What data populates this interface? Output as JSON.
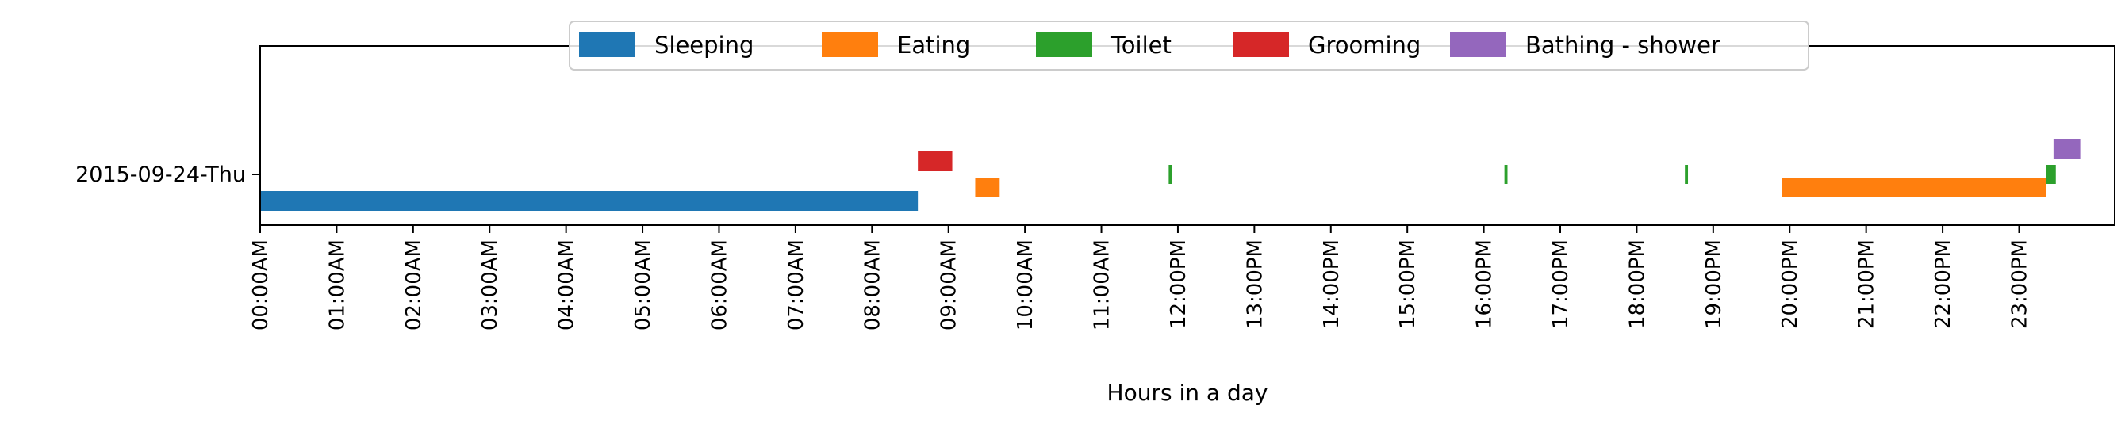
{
  "chart_data": {
    "type": "timeline",
    "title": "",
    "xlabel": "Hours in a day",
    "ylabel": "",
    "xlim": [
      0,
      24.25
    ],
    "grid": false,
    "legend_position": "top-center",
    "rows": [
      {
        "label": "2015-09-24-Thu"
      }
    ],
    "x_ticks": [
      {
        "value": 0,
        "label": "00:00AM"
      },
      {
        "value": 1,
        "label": "01:00AM"
      },
      {
        "value": 2,
        "label": "02:00AM"
      },
      {
        "value": 3,
        "label": "03:00AM"
      },
      {
        "value": 4,
        "label": "04:00AM"
      },
      {
        "value": 5,
        "label": "05:00AM"
      },
      {
        "value": 6,
        "label": "06:00AM"
      },
      {
        "value": 7,
        "label": "07:00AM"
      },
      {
        "value": 8,
        "label": "08:00AM"
      },
      {
        "value": 9,
        "label": "09:00AM"
      },
      {
        "value": 10,
        "label": "10:00AM"
      },
      {
        "value": 11,
        "label": "11:00AM"
      },
      {
        "value": 12,
        "label": "12:00PM"
      },
      {
        "value": 13,
        "label": "13:00PM"
      },
      {
        "value": 14,
        "label": "14:00PM"
      },
      {
        "value": 15,
        "label": "15:00PM"
      },
      {
        "value": 16,
        "label": "16:00PM"
      },
      {
        "value": 17,
        "label": "17:00PM"
      },
      {
        "value": 18,
        "label": "18:00PM"
      },
      {
        "value": 19,
        "label": "19:00PM"
      },
      {
        "value": 20,
        "label": "20:00PM"
      },
      {
        "value": 21,
        "label": "21:00PM"
      },
      {
        "value": 22,
        "label": "22:00PM"
      },
      {
        "value": 23,
        "label": "23:00PM"
      }
    ],
    "series": [
      {
        "name": "Sleeping",
        "color": "#1f77b4",
        "lane": 0,
        "intervals": [
          [
            0.0,
            8.6
          ]
        ]
      },
      {
        "name": "Eating",
        "color": "#ff7f0e",
        "lane": 1,
        "intervals": [
          [
            9.35,
            9.67
          ],
          [
            19.9,
            23.35
          ]
        ]
      },
      {
        "name": "Toilet",
        "color": "#2ca02c",
        "lane": 2,
        "intervals": [
          [
            11.88,
            11.92
          ],
          [
            16.27,
            16.31
          ],
          [
            18.63,
            18.67
          ],
          [
            23.35,
            23.48
          ]
        ]
      },
      {
        "name": "Grooming",
        "color": "#d62728",
        "lane": 3,
        "intervals": [
          [
            8.6,
            9.05
          ]
        ]
      },
      {
        "name": "Bathing - shower",
        "color": "#9467bd",
        "lane": 4,
        "intervals": [
          [
            23.45,
            23.8
          ]
        ]
      }
    ]
  }
}
